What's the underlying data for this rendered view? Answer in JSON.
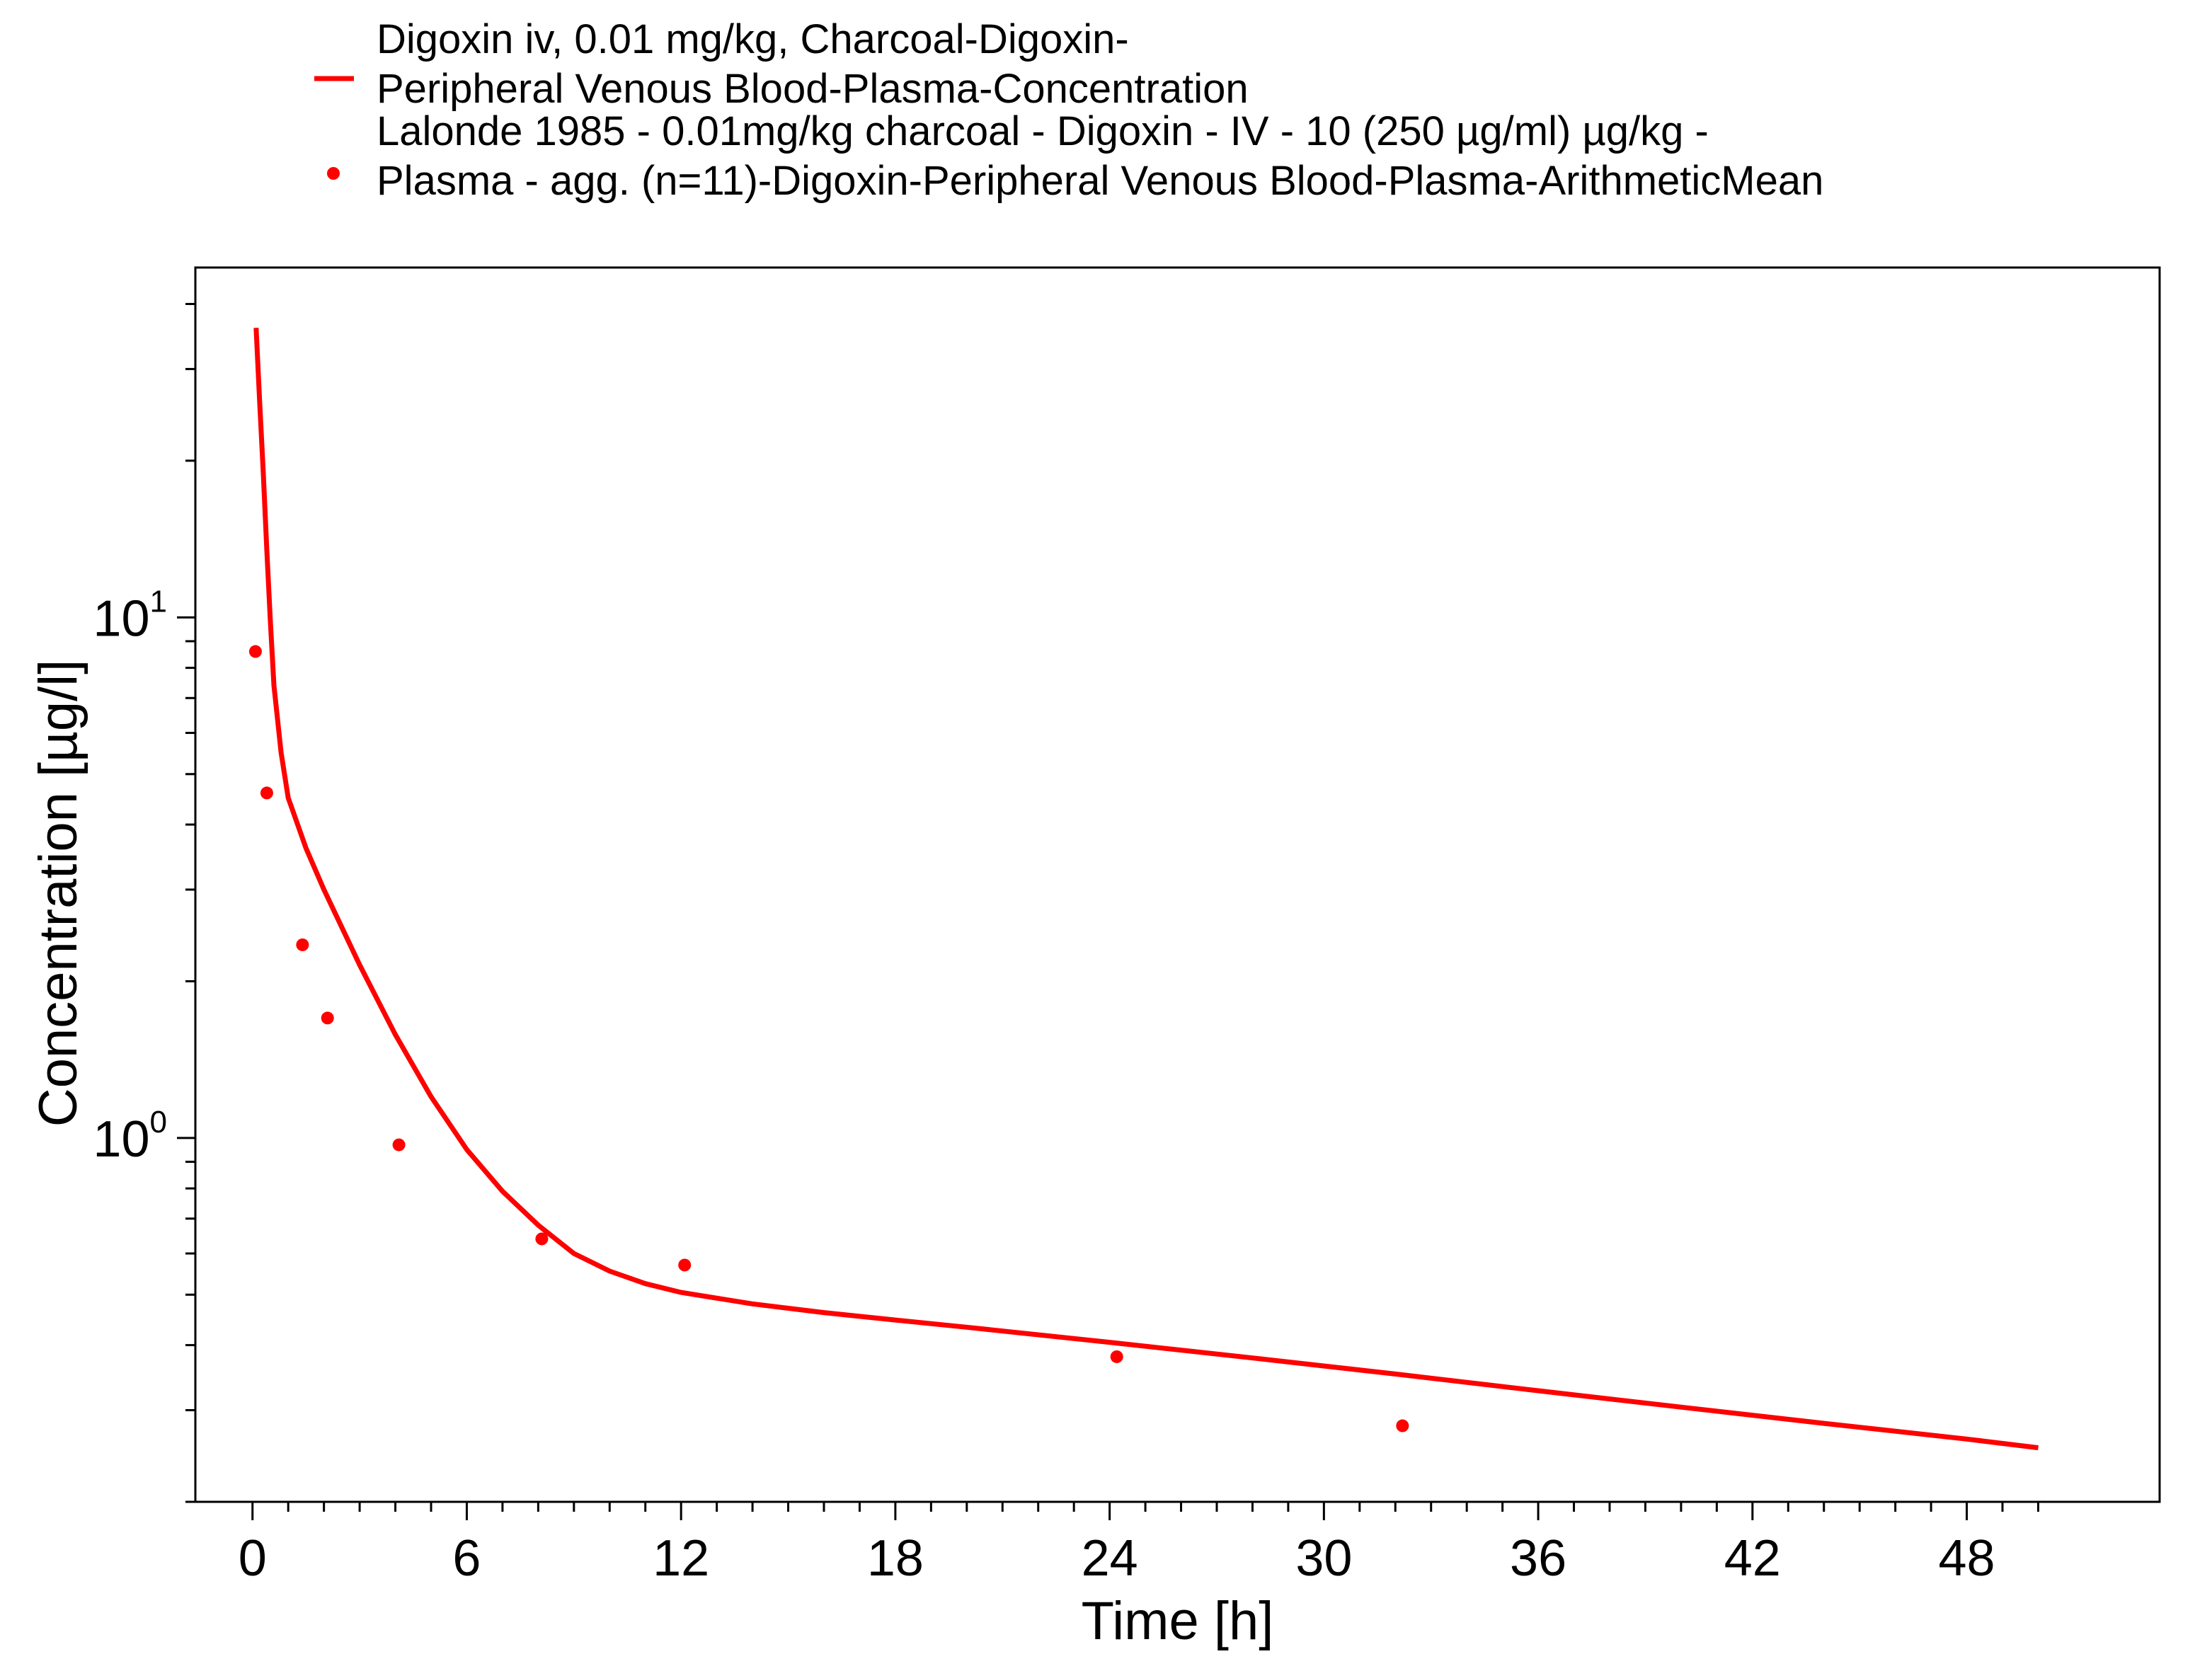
{
  "colors": {
    "series": "#ff0000",
    "axis": "#000000",
    "background": "#ffffff"
  },
  "chart_data": {
    "type": "line",
    "xlabel": "Time [h]",
    "ylabel": "Concentration [µg/l]",
    "x_scale": "linear",
    "y_scale": "log",
    "xlim": [
      -1.6,
      53.4
    ],
    "ylim": [
      0.2,
      47
    ],
    "x_ticks": [
      "0",
      "6",
      "12",
      "18",
      "24",
      "30",
      "36",
      "42",
      "48"
    ],
    "y_ticks": [
      {
        "base": "10",
        "exponent": "1",
        "value": 10
      },
      {
        "base": "10",
        "exponent": "0",
        "value": 1
      }
    ],
    "grid": false,
    "legend_position": "top",
    "series": [
      {
        "name": "Digoxin iv, 0.01 mg/kg, Charcoal-Digoxin-Peripheral Venous Blood-Plasma-Concentration",
        "legend_lines": [
          "Digoxin iv, 0.01 mg/kg, Charcoal-Digoxin-",
          "Peripheral Venous Blood-Plasma-Concentration"
        ],
        "style": "line",
        "color": "#ff0000",
        "x": [
          0.1,
          0.2,
          0.3,
          0.4,
          0.5,
          0.6,
          0.8,
          1,
          1.5,
          2,
          3,
          4,
          5,
          6,
          7,
          8,
          9,
          10,
          11,
          12,
          14,
          16,
          18,
          20,
          24,
          28,
          32,
          36,
          40,
          44,
          48,
          50
        ],
        "y": [
          36,
          26,
          19,
          13.5,
          9.8,
          7.4,
          5.5,
          4.5,
          3.6,
          3.0,
          2.15,
          1.58,
          1.2,
          0.95,
          0.79,
          0.68,
          0.6,
          0.555,
          0.525,
          0.505,
          0.48,
          0.462,
          0.447,
          0.433,
          0.405,
          0.378,
          0.352,
          0.327,
          0.304,
          0.283,
          0.264,
          0.254
        ]
      },
      {
        "name": "Lalonde 1985 - 0.01mg/kg charcoal - Digoxin - IV - 10 (250 µg/ml) µg/kg - Plasma - agg. (n=11)-Digoxin-Peripheral Venous Blood-Plasma-ArithmeticMean",
        "legend_lines": [
          "Lalonde 1985 - 0.01mg/kg charcoal - Digoxin - IV - 10 (250 µg/ml) µg/kg -",
          "Plasma - agg. (n=11)-Digoxin-Peripheral Venous Blood-Plasma-ArithmeticMean"
        ],
        "style": "scatter",
        "color": "#ff0000",
        "x": [
          0.083,
          0.4,
          1.4,
          2.1,
          4.1,
          8.1,
          12.1,
          24.2,
          32.2
        ],
        "y": [
          8.6,
          4.6,
          2.35,
          1.7,
          0.97,
          0.64,
          0.57,
          0.38,
          0.28
        ]
      }
    ]
  }
}
